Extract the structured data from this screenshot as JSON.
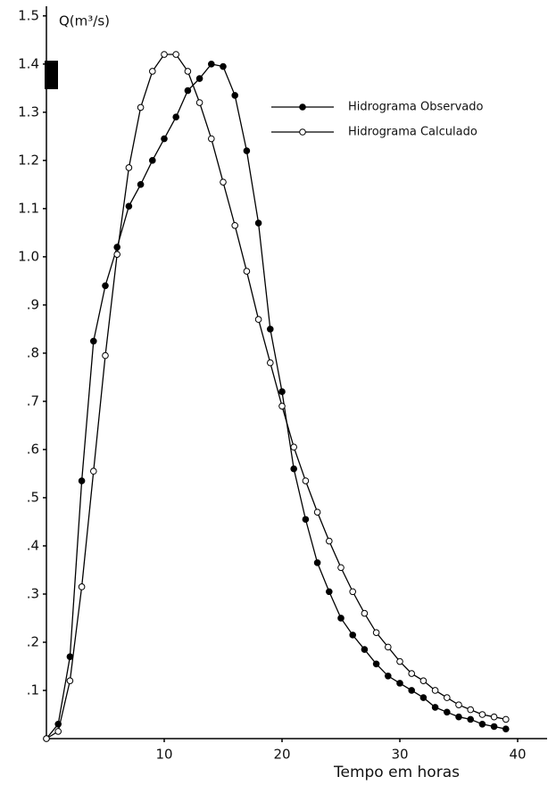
{
  "chart_data": {
    "type": "line",
    "ylabel": "Q(m³/s)",
    "xlabel": "Tempo em horas",
    "x": [
      0,
      1,
      2,
      3,
      4,
      5,
      6,
      7,
      8,
      9,
      10,
      11,
      12,
      13,
      14,
      15,
      16,
      17,
      18,
      19,
      20,
      21,
      22,
      23,
      24,
      25,
      26,
      27,
      28,
      29,
      30,
      31,
      32,
      33,
      34,
      35,
      36,
      37,
      38,
      39
    ],
    "series": [
      {
        "name": "Hidrograma Observado",
        "color": "#000000",
        "marker": "filled",
        "values": [
          0,
          0.03,
          0.17,
          0.535,
          0.825,
          0.94,
          1.02,
          1.105,
          1.15,
          1.2,
          1.245,
          1.29,
          1.345,
          1.37,
          1.4,
          1.395,
          1.335,
          1.22,
          1.07,
          0.85,
          0.72,
          0.56,
          0.455,
          0.365,
          0.305,
          0.25,
          0.215,
          0.185,
          0.155,
          0.13,
          0.115,
          0.1,
          0.085,
          0.065,
          0.055,
          0.045,
          0.04,
          0.03,
          0.025,
          0.02
        ]
      },
      {
        "name": "Hidrograma Calculado",
        "color": "#000000",
        "marker": "open",
        "values": [
          0,
          0.015,
          0.12,
          0.315,
          0.555,
          0.795,
          1.005,
          1.185,
          1.31,
          1.385,
          1.42,
          1.42,
          1.385,
          1.32,
          1.245,
          1.155,
          1.065,
          0.97,
          0.87,
          0.78,
          0.69,
          0.605,
          0.535,
          0.47,
          0.41,
          0.355,
          0.305,
          0.26,
          0.22,
          0.19,
          0.16,
          0.135,
          0.12,
          0.1,
          0.085,
          0.07,
          0.06,
          0.05,
          0.045,
          0.04
        ]
      }
    ],
    "xlim": [
      0,
      42.5
    ],
    "xticks": [
      10,
      20,
      30,
      40
    ],
    "ylim": [
      0,
      1.52
    ],
    "yticks": [
      {
        "value": 0.1,
        "label": ".1"
      },
      {
        "value": 0.2,
        "label": ".2"
      },
      {
        "value": 0.3,
        "label": ".3"
      },
      {
        "value": 0.4,
        "label": ".4"
      },
      {
        "value": 0.5,
        "label": ".5"
      },
      {
        "value": 0.6,
        "label": ".6"
      },
      {
        "value": 0.7,
        "label": ".7"
      },
      {
        "value": 0.8,
        "label": ".8"
      },
      {
        "value": 0.9,
        "label": ".9"
      },
      {
        "value": 1.0,
        "label": "1.0"
      },
      1.1,
      1.2,
      1.3,
      1.4,
      1.5
    ],
    "legend": "upper right"
  }
}
